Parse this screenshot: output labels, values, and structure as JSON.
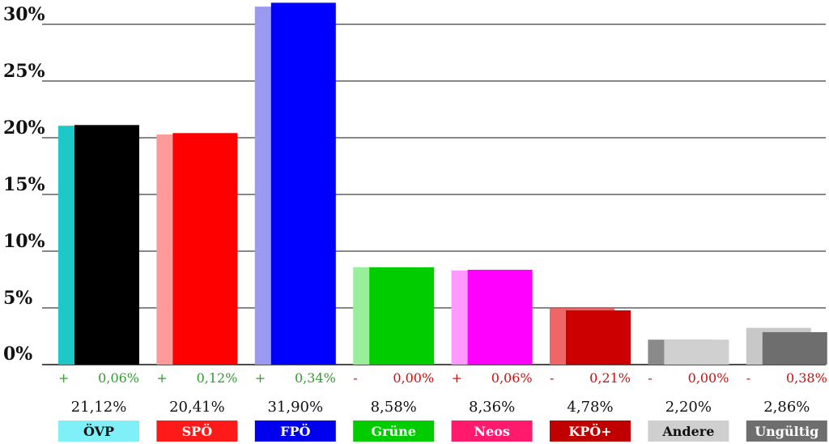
{
  "chart_data": {
    "type": "bar",
    "yticks": [
      "0%",
      "5%",
      "10%",
      "15%",
      "20%",
      "25%",
      "30%"
    ],
    "ylim": [
      0,
      32
    ],
    "grid": true,
    "categories": [
      "ÖVP",
      "SPÖ",
      "FPÖ",
      "Grüne",
      "Neos",
      "KPÖ+",
      "Andere",
      "Ungültig"
    ],
    "values": [
      21.12,
      20.41,
      31.9,
      8.58,
      8.36,
      4.78,
      2.2,
      2.86
    ],
    "previous_values": [
      21.06,
      20.29,
      31.56,
      8.58,
      8.3,
      4.99,
      2.2,
      3.24
    ],
    "value_labels": [
      "21,12%",
      "20,41%",
      "31,90%",
      "8,58%",
      "8,36%",
      "4,78%",
      "2,20%",
      "2,86%"
    ],
    "change_signs": [
      "+",
      "+",
      "+",
      "-",
      "+",
      "-",
      "-",
      "-"
    ],
    "change_labels": [
      "0,06%",
      "0,12%",
      "0,34%",
      "0,00%",
      "0,06%",
      "0,21%",
      "0,00%",
      "0,38%"
    ],
    "change_colors": [
      "#2e9e2e",
      "#2e9e2e",
      "#2e9e2e",
      "#c81010",
      "#c81010",
      "#c81010",
      "#c81010",
      "#c81010"
    ],
    "bar_colors": [
      "#000000",
      "#ff0000",
      "#0000ff",
      "#00cc00",
      "#ff00ff",
      "#cc0000",
      "#d0d0d0",
      "#6e6e6e"
    ],
    "prev_colors": [
      "#1ec8c8",
      "#ff9a9a",
      "#9a9af0",
      "#99ee99",
      "#ff99ff",
      "#ee6666",
      "#8a8a8a",
      "#c8c8c8"
    ],
    "label_bg": [
      "#7ff0f7",
      "#ff1a1a",
      "#0000ee",
      "#00cc00",
      "#ff1a6e",
      "#c00000",
      "#cfcfcf",
      "#6e6e6e"
    ],
    "label_fg": [
      "#111111",
      "#ffffff",
      "#ffffff",
      "#ffffff",
      "#ffffff",
      "#ffffff",
      "#111111",
      "#ffffff"
    ]
  }
}
